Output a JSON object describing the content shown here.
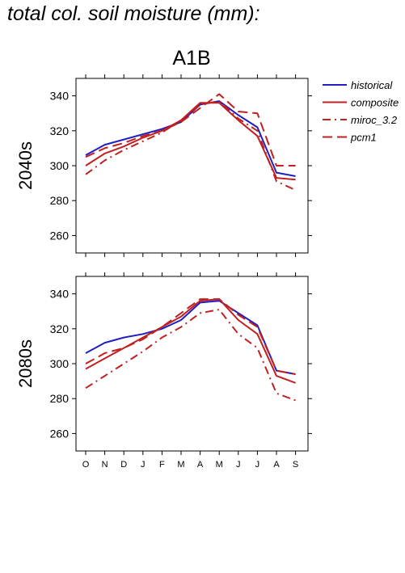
{
  "figure_title": "total col. soil moisture (mm):",
  "scenario": "A1B",
  "chart_data": [
    {
      "type": "line",
      "panel_label": "2040s",
      "categories": [
        "O",
        "N",
        "D",
        "J",
        "F",
        "M",
        "A",
        "M",
        "J",
        "J",
        "A",
        "S"
      ],
      "ylim": [
        250,
        350
      ],
      "yticks": [
        260,
        280,
        300,
        320,
        340
      ],
      "grid": false,
      "legend_position": "right",
      "series": [
        {
          "name": "historical",
          "color": "#2020c0",
          "dash": "solid",
          "values": [
            306,
            312,
            315,
            318,
            321,
            325,
            335,
            337,
            329,
            322,
            296,
            294
          ]
        },
        {
          "name": "composite",
          "color": "#c02020",
          "dash": "solid",
          "values": [
            300,
            307,
            311,
            316,
            320,
            326,
            336,
            336,
            326,
            317,
            293,
            292
          ]
        },
        {
          "name": "miroc_3.2",
          "color": "#c02020",
          "dash": "dashdot",
          "values": [
            295,
            303,
            309,
            314,
            319,
            326,
            335,
            337,
            327,
            320,
            291,
            286
          ]
        },
        {
          "name": "pcm1",
          "color": "#c02020",
          "dash": "dashed",
          "values": [
            305,
            310,
            313,
            317,
            320,
            325,
            333,
            341,
            331,
            330,
            300,
            300
          ]
        }
      ]
    },
    {
      "type": "line",
      "panel_label": "2080s",
      "categories": [
        "O",
        "N",
        "D",
        "J",
        "F",
        "M",
        "A",
        "M",
        "J",
        "J",
        "A",
        "S"
      ],
      "ylim": [
        250,
        350
      ],
      "yticks": [
        260,
        280,
        300,
        320,
        340
      ],
      "grid": false,
      "series": [
        {
          "name": "historical",
          "color": "#2020c0",
          "dash": "solid",
          "values": [
            306,
            312,
            315,
            317,
            320,
            325,
            335,
            336,
            329,
            322,
            296,
            294
          ]
        },
        {
          "name": "composite",
          "color": "#c02020",
          "dash": "solid",
          "values": [
            297,
            303,
            309,
            315,
            321,
            327,
            336,
            337,
            325,
            317,
            293,
            289
          ]
        },
        {
          "name": "miroc_3.2",
          "color": "#c02020",
          "dash": "dashdot",
          "values": [
            286,
            293,
            300,
            307,
            315,
            321,
            329,
            331,
            317,
            309,
            283,
            279
          ]
        },
        {
          "name": "pcm1",
          "color": "#c02020",
          "dash": "dashed",
          "values": [
            300,
            306,
            309,
            314,
            321,
            329,
            337,
            337,
            328,
            321,
            296,
            294
          ]
        }
      ]
    }
  ]
}
